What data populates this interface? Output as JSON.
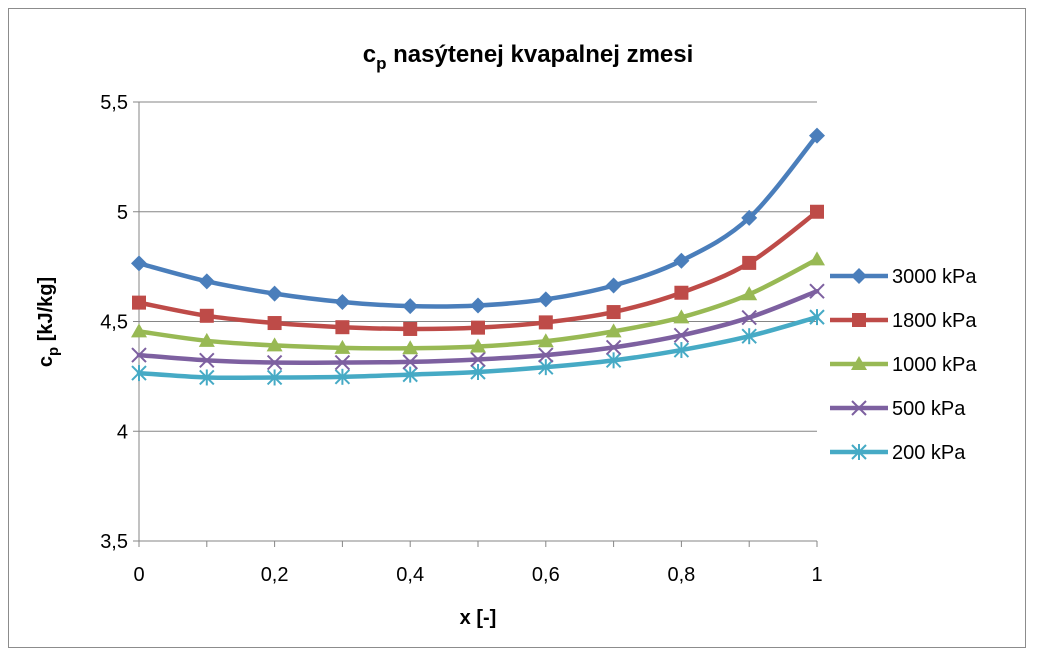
{
  "chart_data": {
    "type": "line",
    "title_main": "c",
    "title_sub": "p",
    "title_rest": " nasýtenej kvapalnej zmesi",
    "xlabel": "x [-]",
    "ylabel_main": "c",
    "ylabel_sub": "p",
    "ylabel_rest": " [kJ/kg]",
    "xlim": [
      0,
      1
    ],
    "ylim": [
      3.5,
      5.5
    ],
    "x": [
      0,
      0.1,
      0.2,
      0.3,
      0.4,
      0.5,
      0.6,
      0.7,
      0.8,
      0.9,
      1
    ],
    "x_ticks": [
      0,
      0.2,
      0.4,
      0.6,
      0.8,
      1
    ],
    "x_tick_labels": [
      "0",
      "0,2",
      "0,4",
      "0,6",
      "0,8",
      "1"
    ],
    "y_ticks": [
      3.5,
      4,
      4.5,
      5,
      5.5
    ],
    "y_tick_labels": [
      "3,5",
      "4",
      "4,5",
      "5",
      "5,5"
    ],
    "grid": "horizontal",
    "legend_position": "right",
    "series": [
      {
        "name": "3000 kPa",
        "color": "#4a7ebb",
        "marker": "diamond",
        "values": [
          4.765,
          4.683,
          4.627,
          4.589,
          4.57,
          4.573,
          4.601,
          4.664,
          4.777,
          4.972,
          5.347
        ]
      },
      {
        "name": "1800 kPa",
        "color": "#be4b48",
        "marker": "square",
        "values": [
          4.586,
          4.526,
          4.493,
          4.474,
          4.466,
          4.472,
          4.496,
          4.543,
          4.631,
          4.767,
          5.0
        ]
      },
      {
        "name": "1000 kPa",
        "color": "#98b954",
        "marker": "triangle",
        "values": [
          4.455,
          4.412,
          4.391,
          4.38,
          4.378,
          4.386,
          4.41,
          4.455,
          4.519,
          4.624,
          4.783
        ]
      },
      {
        "name": "500 kPa",
        "color": "#7d60a0",
        "marker": "x",
        "values": [
          4.347,
          4.323,
          4.313,
          4.313,
          4.316,
          4.327,
          4.347,
          4.382,
          4.437,
          4.518,
          4.638
        ]
      },
      {
        "name": "200 kPa",
        "color": "#46aac5",
        "marker": "star",
        "values": [
          4.265,
          4.245,
          4.245,
          4.248,
          4.258,
          4.27,
          4.292,
          4.323,
          4.37,
          4.433,
          4.52
        ]
      }
    ]
  }
}
